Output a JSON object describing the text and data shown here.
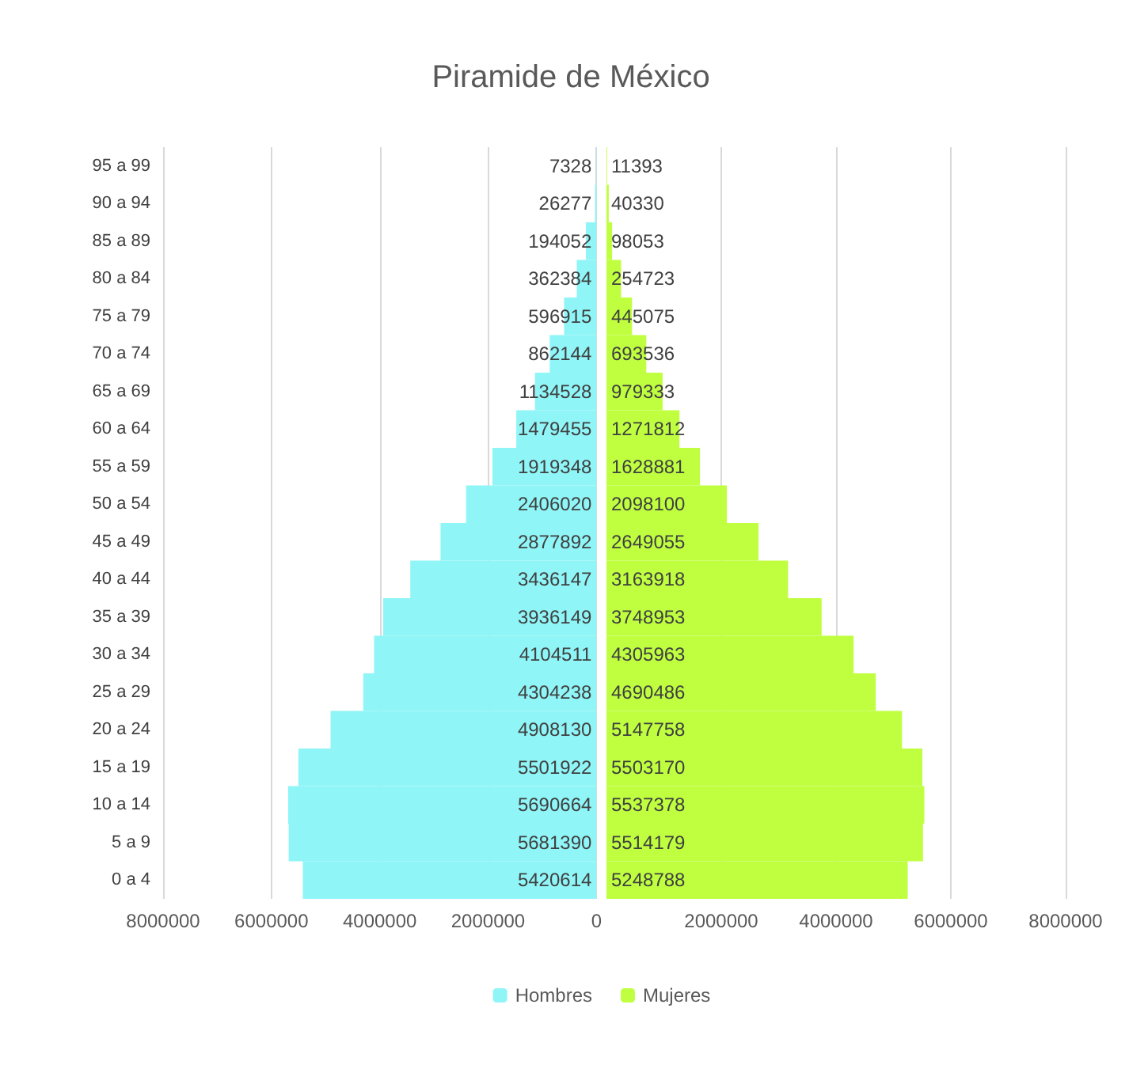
{
  "chart_data": [
    {
      "type": "bar",
      "title": "Piramide de México",
      "orientation": "horizontal",
      "categories": [
        "95 a 99",
        "90 a 94",
        "85 a 89",
        "80 a 84",
        "75 a 79",
        "70 a 74",
        "65 a 69",
        "60 a 64",
        "55 a 59",
        "50 a 54",
        "45 a 49",
        "40 a 44",
        "35 a 39",
        "30 a 34",
        "25 a 29",
        "20 a 24",
        "15 a 19",
        "10 a 14",
        "5 a 9",
        "0 a 4"
      ],
      "series": [
        {
          "name": "Hombres",
          "color": "#8ff5f7",
          "values": [
            7328,
            26277,
            194052,
            362384,
            596915,
            862144,
            1134528,
            1479455,
            1919348,
            2406020,
            2877892,
            3436147,
            3936149,
            4104511,
            4304238,
            4908130,
            5501922,
            5690664,
            5681390,
            5420614
          ]
        }
      ],
      "data_labels": true,
      "xlim": [
        8000000,
        0
      ],
      "xticks": [
        8000000,
        6000000,
        4000000,
        2000000,
        0
      ],
      "grid": "x",
      "legend": "bottom"
    },
    {
      "type": "bar",
      "orientation": "horizontal",
      "categories": [
        null,
        null,
        null,
        null,
        null,
        null,
        null,
        null,
        null,
        null,
        null,
        null,
        null,
        null,
        null,
        null,
        null,
        null,
        null,
        null
      ],
      "series": [
        {
          "name": "Mujeres",
          "color": "#bfff40",
          "values": [
            11393,
            40330,
            98053,
            254723,
            445075,
            693536,
            979333,
            1271812,
            1628881,
            2098100,
            2649055,
            3163918,
            3748953,
            4305963,
            4690486,
            5147758,
            5503170,
            5537378,
            5514179,
            5248788
          ]
        }
      ],
      "data_labels": true,
      "xlim": [
        0,
        8000000
      ],
      "xticks": [
        2000000,
        4000000,
        6000000,
        8000000
      ],
      "tick_labels": "x",
      "grid": "x",
      "legend": "bottom"
    }
  ]
}
